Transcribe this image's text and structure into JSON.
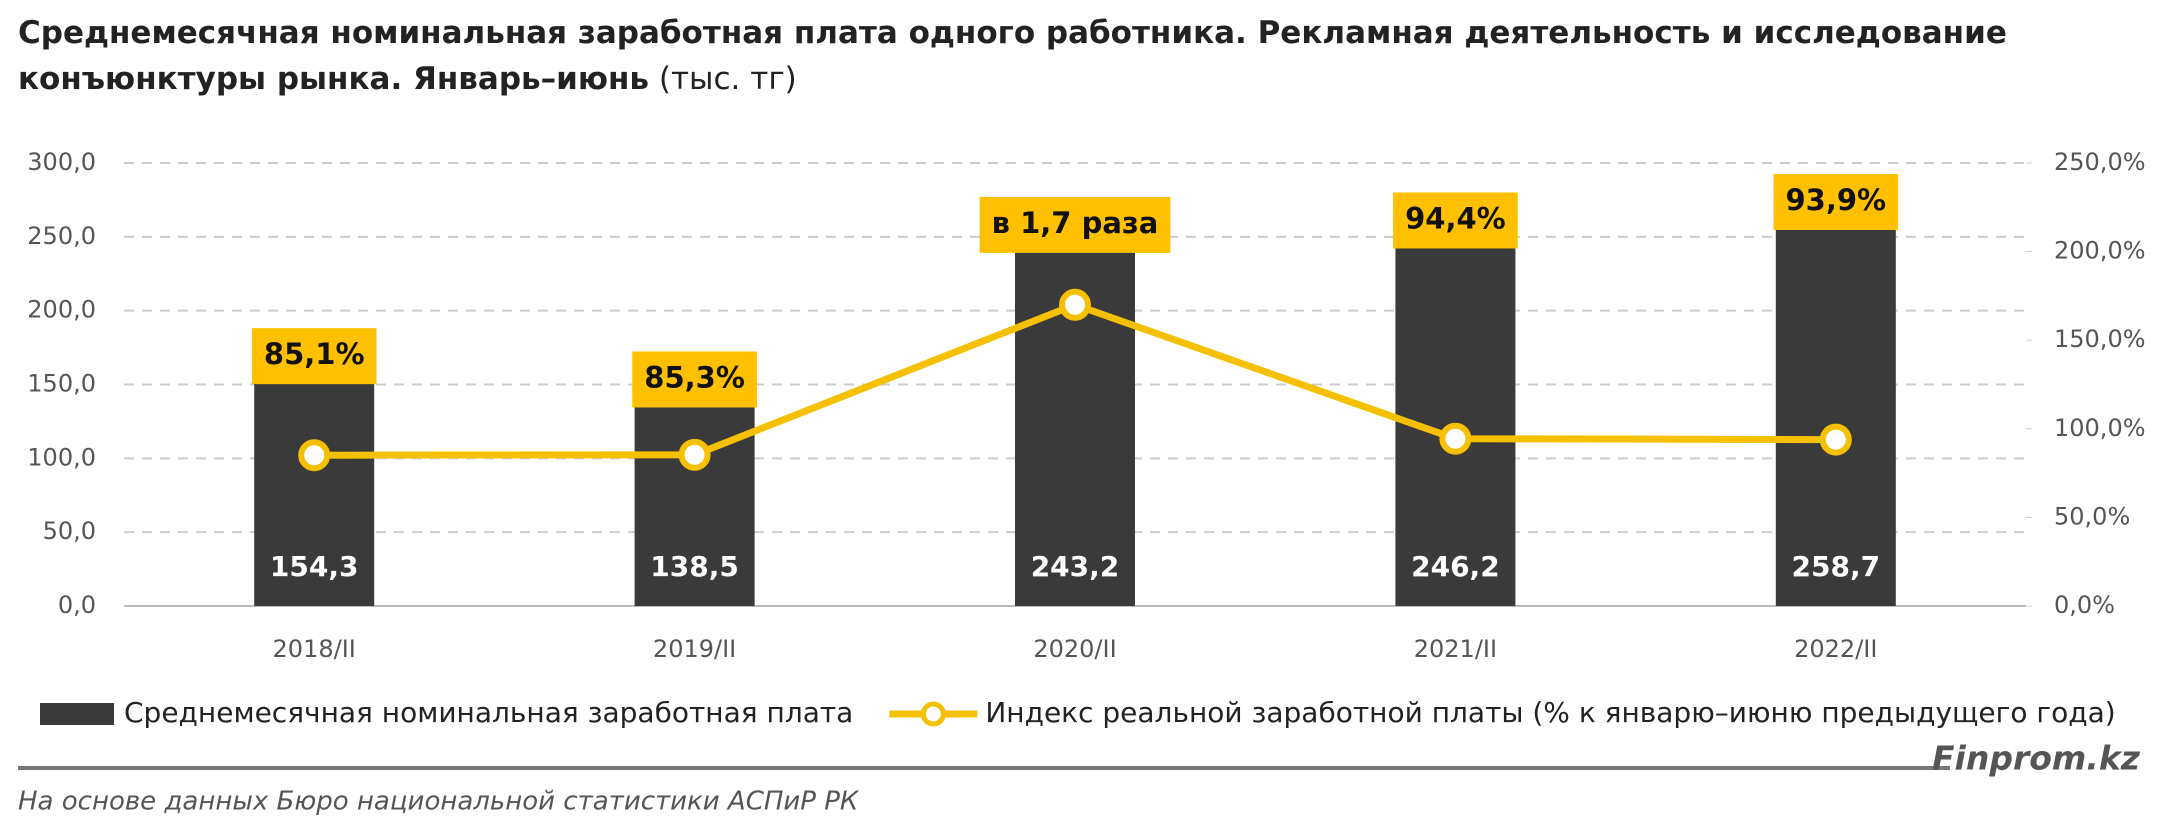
{
  "chart_data": {
    "type": "bar-line",
    "title": "Среднемесячная номинальная заработная плата одного работника. Рекламная деятельность и исследование конъюнктуры рынка. Январь–июнь",
    "title_unit": "(тыс. тг)",
    "categories": [
      "2018/II",
      "2019/II",
      "2020/II",
      "2021/II",
      "2022/II"
    ],
    "series": [
      {
        "name": "Среднемесячная номинальная заработная плата",
        "color": "#3a3a3a",
        "values": [
          154.3,
          138.5,
          243.2,
          246.2,
          258.7
        ],
        "value_labels": [
          "154,3",
          "138,5",
          "243,2",
          "246,2",
          "258,7"
        ]
      },
      {
        "name": "Индекс реальной заработной платы (% к январю–июню предыдущего года)",
        "color": "#f5c000",
        "axis": "y2",
        "values": [
          85.1,
          85.3,
          170,
          94.4,
          93.9
        ],
        "value_labels": [
          "85,1%",
          "85,3%",
          "в 1,7 раза",
          "94,4%",
          "93,9%"
        ]
      }
    ],
    "ylim": [
      0,
      300
    ],
    "yticks": [
      {
        "value": 0,
        "label": "0,0"
      },
      {
        "value": 50,
        "label": "50,0"
      },
      {
        "value": 100,
        "label": "100,0"
      },
      {
        "value": 150,
        "label": "150,0"
      },
      {
        "value": 200,
        "label": "200,0"
      },
      {
        "value": 250,
        "label": "250,0"
      },
      {
        "value": 300,
        "label": "300,0"
      }
    ],
    "y2lim": [
      0,
      250
    ],
    "y2ticks": [
      {
        "value": 0,
        "label": "0,0%"
      },
      {
        "value": 50,
        "label": "50,0%"
      },
      {
        "value": 100,
        "label": "100,0%"
      },
      {
        "value": 150,
        "label": "150,0%"
      },
      {
        "value": 200,
        "label": "200,0%"
      },
      {
        "value": 250,
        "label": "250,0%"
      }
    ],
    "grid": true,
    "brand": "Finprom.kz",
    "source": "На основе данных Бюро национальной статистики АСПиР РК"
  }
}
